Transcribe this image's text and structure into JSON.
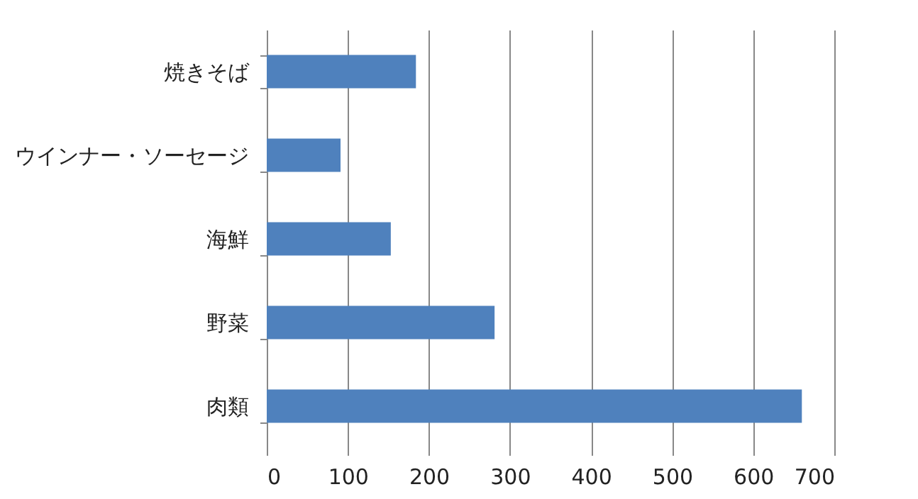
{
  "chart_data": {
    "type": "bar",
    "orientation": "horizontal",
    "categories": [
      "焼きそば",
      "ウインナー・ソーセージ",
      "海鮮",
      "野菜",
      "肉類"
    ],
    "values": [
      184,
      91,
      153,
      281,
      660
    ],
    "color": "#4f81bd",
    "xlim": [
      0,
      700
    ],
    "xticks": [
      0,
      100,
      200,
      300,
      400,
      500,
      600,
      700
    ],
    "grid": "x"
  }
}
